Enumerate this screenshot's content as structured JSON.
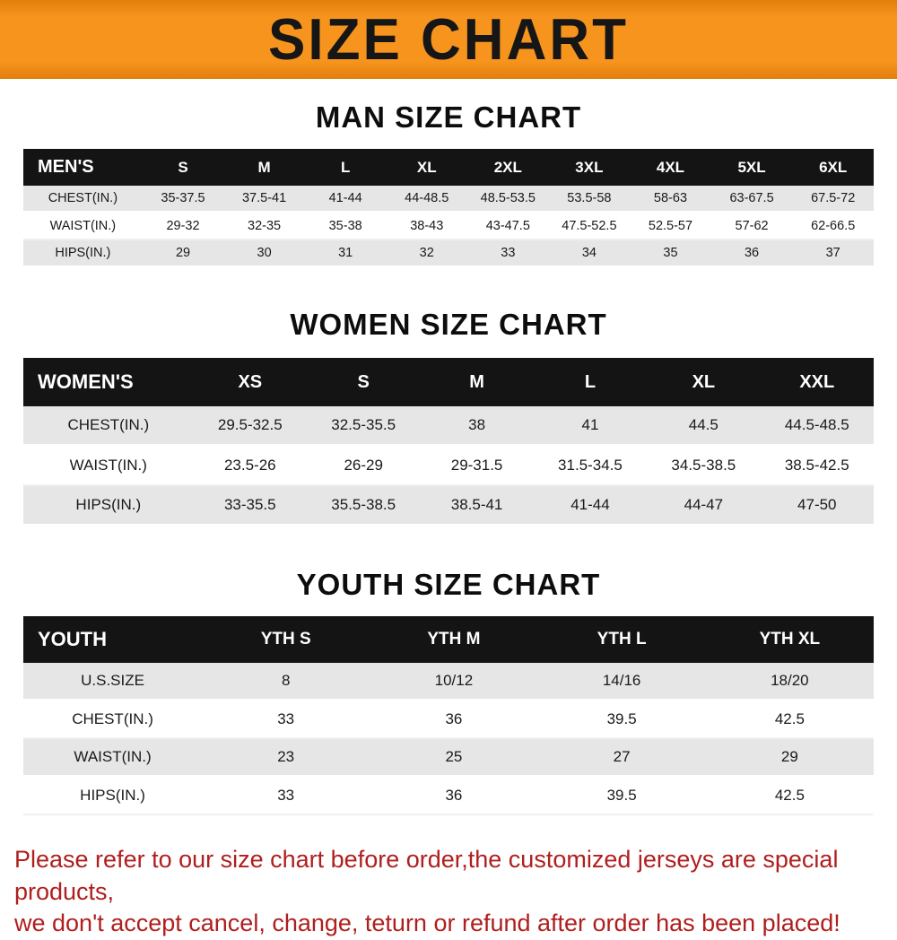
{
  "banner": {
    "title": "SIZE CHART"
  },
  "sections": [
    {
      "id": "men",
      "heading": "MAN SIZE CHART",
      "table": {
        "header": [
          "MEN'S",
          "S",
          "M",
          "L",
          "XL",
          "2XL",
          "3XL",
          "4XL",
          "5XL",
          "6XL"
        ],
        "rows": [
          [
            "CHEST(IN.)",
            "35-37.5",
            "37.5-41",
            "41-44",
            "44-48.5",
            "48.5-53.5",
            "53.5-58",
            "58-63",
            "63-67.5",
            "67.5-72"
          ],
          [
            "WAIST(IN.)",
            "29-32",
            "32-35",
            "35-38",
            "38-43",
            "43-47.5",
            "47.5-52.5",
            "52.5-57",
            "57-62",
            "62-66.5"
          ],
          [
            "HIPS(IN.)",
            "29",
            "30",
            "31",
            "32",
            "33",
            "34",
            "35",
            "36",
            "37"
          ]
        ]
      }
    },
    {
      "id": "women",
      "heading": "WOMEN SIZE CHART",
      "table": {
        "header": [
          "WOMEN'S",
          "XS",
          "S",
          "M",
          "L",
          "XL",
          "XXL"
        ],
        "rows": [
          [
            "CHEST(IN.)",
            "29.5-32.5",
            "32.5-35.5",
            "38",
            "41",
            "44.5",
            "44.5-48.5"
          ],
          [
            "WAIST(IN.)",
            "23.5-26",
            "26-29",
            "29-31.5",
            "31.5-34.5",
            "34.5-38.5",
            "38.5-42.5"
          ],
          [
            "HIPS(IN.)",
            "33-35.5",
            "35.5-38.5",
            "38.5-41",
            "41-44",
            "44-47",
            "47-50"
          ]
        ]
      }
    },
    {
      "id": "youth",
      "heading": "YOUTH SIZE CHART",
      "table": {
        "header": [
          "YOUTH",
          "YTH S",
          "YTH M",
          "YTH L",
          "YTH XL"
        ],
        "rows": [
          [
            "U.S.SIZE",
            "8",
            "10/12",
            "14/16",
            "18/20"
          ],
          [
            "CHEST(IN.)",
            "33",
            "36",
            "39.5",
            "42.5"
          ],
          [
            "WAIST(IN.)",
            "23",
            "25",
            "27",
            "29"
          ],
          [
            "HIPS(IN.)",
            "33",
            "36",
            "39.5",
            "42.5"
          ]
        ]
      }
    }
  ],
  "footer": {
    "line1": "Please refer to our size chart before order,the customized jerseys are special products,",
    "line2": "we don't accept cancel, change, teturn or refund after order has been placed!"
  },
  "colors": {
    "banner_orange": "#f7941e",
    "header_black": "#141414",
    "row_gray": "#e6e6e6",
    "footer_red": "#b01e1e"
  }
}
